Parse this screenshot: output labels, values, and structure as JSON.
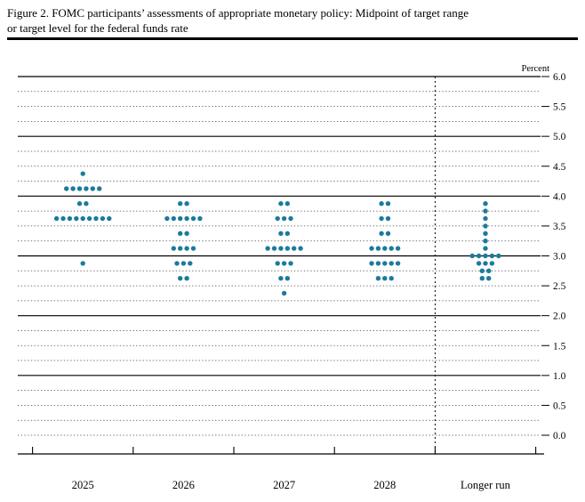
{
  "figure": {
    "title_line1": "Figure 2. FOMC participants’ assessments of appropriate monetary policy: Midpoint of target range",
    "title_line2": "or target level for the federal funds rate"
  },
  "chart_data": {
    "type": "scatter",
    "title": "FOMC participants’ assessments of appropriate monetary policy: Midpoint of target range or target level for the federal funds rate",
    "unit_label": "Percent",
    "ylabel": "Percent",
    "ylim": [
      0.0,
      6.0
    ],
    "grid": {
      "minor_interval": 0.25,
      "major_values": [
        1.0,
        2.0,
        3.0,
        4.0,
        5.0,
        6.0
      ]
    },
    "yticks": [
      {
        "value": 6.0,
        "label": "6.0"
      },
      {
        "value": 5.5,
        "label": "5.5"
      },
      {
        "value": 5.0,
        "label": "5.0"
      },
      {
        "value": 4.5,
        "label": "4.5"
      },
      {
        "value": 4.0,
        "label": "4.0"
      },
      {
        "value": 3.5,
        "label": "3.5"
      },
      {
        "value": 3.0,
        "label": "3.0"
      },
      {
        "value": 2.5,
        "label": "2.5"
      },
      {
        "value": 2.0,
        "label": "2.0"
      },
      {
        "value": 1.5,
        "label": "1.5"
      },
      {
        "value": 1.0,
        "label": "1.0"
      },
      {
        "value": 0.5,
        "label": "0.5"
      },
      {
        "value": 0.0,
        "label": "0.0"
      }
    ],
    "categories": [
      "2025",
      "2026",
      "2027",
      "2028",
      "Longer run"
    ],
    "separator_before_category": "Longer run",
    "dot_color": "#1b7b9c",
    "dots": [
      {
        "category": "2025",
        "distribution": [
          {
            "rate": 4.375,
            "count": 1
          },
          {
            "rate": 4.125,
            "count": 6
          },
          {
            "rate": 3.875,
            "count": 2
          },
          {
            "rate": 3.625,
            "count": 9
          },
          {
            "rate": 2.875,
            "count": 1
          }
        ]
      },
      {
        "category": "2026",
        "distribution": [
          {
            "rate": 3.875,
            "count": 2
          },
          {
            "rate": 3.625,
            "count": 6
          },
          {
            "rate": 3.375,
            "count": 2
          },
          {
            "rate": 3.125,
            "count": 4
          },
          {
            "rate": 2.875,
            "count": 3
          },
          {
            "rate": 2.625,
            "count": 2
          }
        ]
      },
      {
        "category": "2027",
        "distribution": [
          {
            "rate": 3.875,
            "count": 2
          },
          {
            "rate": 3.625,
            "count": 3
          },
          {
            "rate": 3.375,
            "count": 2
          },
          {
            "rate": 3.125,
            "count": 6
          },
          {
            "rate": 2.875,
            "count": 3
          },
          {
            "rate": 2.625,
            "count": 2
          },
          {
            "rate": 2.375,
            "count": 1
          }
        ]
      },
      {
        "category": "2028",
        "distribution": [
          {
            "rate": 3.875,
            "count": 2
          },
          {
            "rate": 3.625,
            "count": 2
          },
          {
            "rate": 3.375,
            "count": 2
          },
          {
            "rate": 3.125,
            "count": 5
          },
          {
            "rate": 2.875,
            "count": 5
          },
          {
            "rate": 2.625,
            "count": 3
          }
        ]
      },
      {
        "category": "Longer run",
        "distribution": [
          {
            "rate": 3.875,
            "count": 1
          },
          {
            "rate": 3.75,
            "count": 1
          },
          {
            "rate": 3.625,
            "count": 1
          },
          {
            "rate": 3.5,
            "count": 1
          },
          {
            "rate": 3.375,
            "count": 1
          },
          {
            "rate": 3.25,
            "count": 1
          },
          {
            "rate": 3.125,
            "count": 1
          },
          {
            "rate": 3.0,
            "count": 5
          },
          {
            "rate": 2.875,
            "count": 3
          },
          {
            "rate": 2.75,
            "count": 2
          },
          {
            "rate": 2.625,
            "count": 2
          }
        ]
      }
    ]
  }
}
